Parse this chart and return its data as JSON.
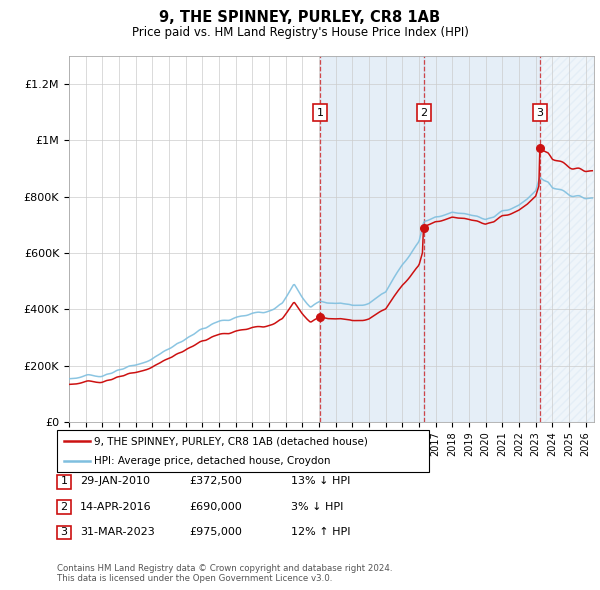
{
  "title": "9, THE SPINNEY, PURLEY, CR8 1AB",
  "subtitle": "Price paid vs. HM Land Registry's House Price Index (HPI)",
  "ylim": [
    0,
    1300000
  ],
  "yticks": [
    0,
    200000,
    400000,
    600000,
    800000,
    1000000,
    1200000
  ],
  "ytick_labels": [
    "£0",
    "£200K",
    "£400K",
    "£600K",
    "£800K",
    "£1M",
    "£1.2M"
  ],
  "hpi_color": "#7fbfdf",
  "price_color": "#cc1111",
  "t1": 2010.08,
  "t2": 2016.29,
  "t3": 2023.25,
  "p1": 372500,
  "p2": 690000,
  "p3": 975000,
  "transaction_info": [
    {
      "label": "1",
      "date": "29-JAN-2010",
      "price": "£372,500",
      "pct": "13%",
      "dir": "↓",
      "note": "HPI"
    },
    {
      "label": "2",
      "date": "14-APR-2016",
      "price": "£690,000",
      "pct": "3%",
      "dir": "↓",
      "note": "HPI"
    },
    {
      "label": "3",
      "date": "31-MAR-2023",
      "price": "£975,000",
      "pct": "12%",
      "dir": "↑",
      "note": "HPI"
    }
  ],
  "legend_line1": "9, THE SPINNEY, PURLEY, CR8 1AB (detached house)",
  "legend_line2": "HPI: Average price, detached house, Croydon",
  "footer": "Contains HM Land Registry data © Crown copyright and database right 2024.\nThis data is licensed under the Open Government Licence v3.0.",
  "xstart": 1995.0,
  "xend": 2026.5,
  "grid_color": "#cccccc",
  "shading_color": "#ccdff0"
}
